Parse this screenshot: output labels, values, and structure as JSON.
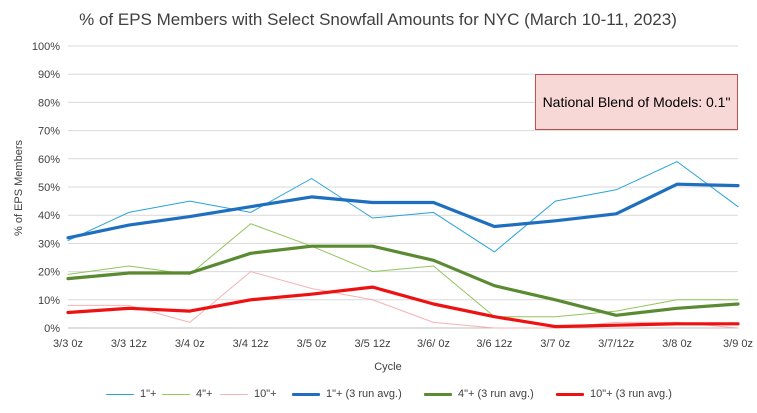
{
  "chart_data": {
    "type": "line",
    "title": "% of EPS Members with Select Snowfall Amounts for NYC (March 10-11, 2023)",
    "xlabel": "Cycle",
    "ylabel": "% of EPS Members",
    "ylim": [
      0,
      100
    ],
    "yticks": [
      "0%",
      "10%",
      "20%",
      "30%",
      "40%",
      "50%",
      "60%",
      "70%",
      "80%",
      "90%",
      "100%"
    ],
    "categories": [
      "3/3 0z",
      "3/3 12z",
      "3/4 0z",
      "3/4 12z",
      "3/5 0z",
      "3/5 12z",
      "3/6/ 0z",
      "3/6 12z",
      "3/7 0z",
      "3/7/12z",
      "3/8 0z",
      "3/9 0z"
    ],
    "grid": true,
    "legend_position": "bottom",
    "series": [
      {
        "name": "1\"+",
        "color": "#2aa3d8",
        "width": "thin",
        "values": [
          31,
          41,
          45,
          41,
          53,
          39,
          41,
          27,
          45,
          49,
          59,
          43
        ]
      },
      {
        "name": "4\"+",
        "color": "#92c55a",
        "width": "thin",
        "values": [
          19,
          22,
          19,
          37,
          29,
          20,
          22,
          4,
          4,
          6,
          10,
          10
        ]
      },
      {
        "name": "10\"+",
        "color": "#f3b3b3",
        "width": "thin",
        "values": [
          8,
          8,
          2,
          20,
          14,
          10,
          2,
          0,
          0,
          2,
          2,
          0
        ]
      },
      {
        "name": "1\"+ (3 run avg.)",
        "color": "#1f6fc0",
        "width": "thick",
        "values": [
          32,
          36.5,
          39.5,
          43,
          46.5,
          44.5,
          44.5,
          36,
          38,
          40.5,
          51,
          50.5
        ]
      },
      {
        "name": "4\"+ (3 run avg.)",
        "color": "#5a8a32",
        "width": "thick",
        "values": [
          17.5,
          19.5,
          19.5,
          26.5,
          29,
          29,
          24,
          15,
          10,
          4.5,
          7,
          8.5
        ]
      },
      {
        "name": "10\"+ (3 run avg.)",
        "color": "#ee1111",
        "width": "thick",
        "values": [
          5.5,
          7,
          6,
          10,
          12,
          14.5,
          8.5,
          4,
          0.5,
          1,
          1.5,
          1.5
        ]
      }
    ],
    "annotation": "National Blend of Models: 0.1\""
  }
}
